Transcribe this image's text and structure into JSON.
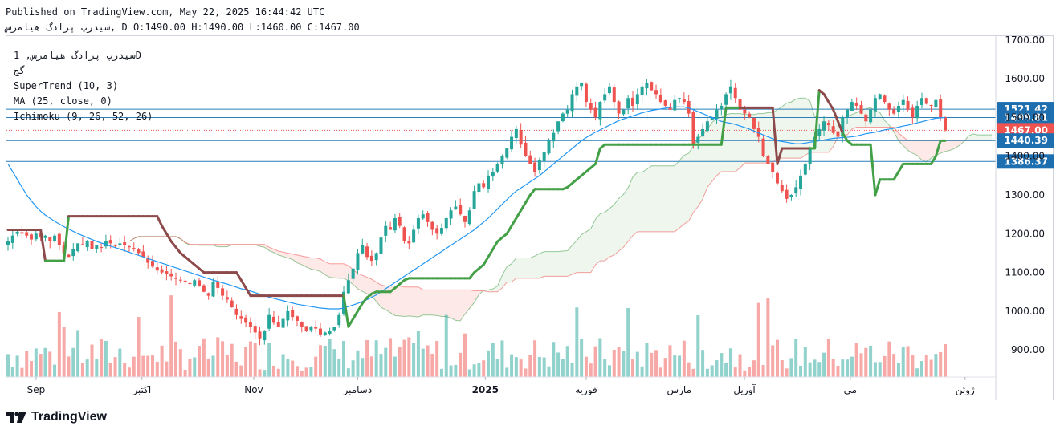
{
  "header": {
    "published": "Published on TradingView.com, May 22, 2025 16:44:42 UTC",
    "ohlc": "سیدرپ پرادگ هیامرس, D O:1490.00 H:1490.00 L:1460.00 C:1467.00"
  },
  "legend": {
    "symbol": "سیدرپ پرادگ هیامرس, 1D",
    "exchange": "گج",
    "supertrend": "SuperTrend (10, 3)",
    "ma": "MA (25, close, 0)",
    "ichimoku": "Ichimoku (9, 26, 52, 26)"
  },
  "branding": {
    "logo": "TradingView"
  },
  "colors": {
    "up": "#26a69a",
    "down": "#ef5350",
    "st_up": "#43a047",
    "st_down": "#8d4a4a",
    "ma": "#2196f3",
    "hline": "#2a7fb8"
  },
  "chart_data": {
    "type": "candlestick",
    "ylim": [
      830,
      1710
    ],
    "y_ticks": [
      "1700.00",
      "1600.00",
      "1500.00",
      "1400.00",
      "1300.00",
      "1200.00",
      "1100.00",
      "1000.00",
      "900.00"
    ],
    "y_tick_values": [
      1700,
      1600,
      1500,
      1400,
      1300,
      1200,
      1100,
      1000,
      900
    ],
    "price_labels": [
      {
        "value": 1521.42,
        "label": "1521.42",
        "kind": "hline"
      },
      {
        "value": 1499.81,
        "label": "1499.81",
        "kind": "hline"
      },
      {
        "value": 1467.0,
        "label": "1467.00",
        "kind": "last"
      },
      {
        "value": 1440.39,
        "label": "1440.39",
        "kind": "hline"
      },
      {
        "value": 1386.37,
        "label": "1386.37",
        "kind": "hline"
      }
    ],
    "x_labels": [
      {
        "label": "Sep",
        "pos": 0.03
      },
      {
        "label": "اکتبر",
        "pos": 0.137
      },
      {
        "label": "Nov",
        "pos": 0.25
      },
      {
        "label": "دسامبر",
        "pos": 0.355
      },
      {
        "label": "2025",
        "pos": 0.484
      },
      {
        "label": "فوریه",
        "pos": 0.586
      },
      {
        "label": "مارس",
        "pos": 0.68
      },
      {
        "label": "آوریل",
        "pos": 0.746
      },
      {
        "label": "می",
        "pos": 0.853
      },
      {
        "label": "ژوئن",
        "pos": 0.969
      }
    ],
    "series": [
      {
        "name": "Price (close)",
        "closes": [
          1180,
          1195,
          1205,
          1200,
          1195,
          1185,
          1200,
          1190,
          1195,
          1180,
          1195,
          1170,
          1150,
          1140,
          1160,
          1175,
          1170,
          1180,
          1160,
          1170,
          1165,
          1180,
          1175,
          1170,
          1175,
          1170,
          1165,
          1160,
          1150,
          1140,
          1125,
          1115,
          1105,
          1100,
          1095,
          1090,
          1085,
          1080,
          1075,
          1070,
          1080,
          1065,
          1050,
          1040,
          1075,
          1060,
          1040,
          1030,
          1010,
          990,
          980,
          970,
          960,
          945,
          930,
          950,
          990,
          970,
          960,
          980,
          1000,
          985,
          975,
          960,
          950,
          960,
          955,
          940,
          945,
          950,
          960,
          990,
          1050,
          1080,
          1110,
          1150,
          1170,
          1140,
          1130,
          1150,
          1190,
          1220,
          1210,
          1240,
          1220,
          1180,
          1175,
          1210,
          1240,
          1250,
          1230,
          1210,
          1200,
          1215,
          1240,
          1260,
          1270,
          1250,
          1230,
          1260,
          1310,
          1330,
          1320,
          1350,
          1360,
          1380,
          1400,
          1420,
          1450,
          1470,
          1430,
          1400,
          1380,
          1360,
          1390,
          1410,
          1440,
          1460,
          1490,
          1510,
          1520,
          1560,
          1580,
          1590,
          1540,
          1520,
          1500,
          1540,
          1560,
          1580,
          1540,
          1510,
          1520,
          1550,
          1530,
          1560,
          1580,
          1590,
          1570,
          1560,
          1540,
          1530,
          1520,
          1545,
          1550,
          1540,
          1510,
          1430,
          1450,
          1470,
          1490,
          1500,
          1520,
          1530,
          1560,
          1580,
          1550,
          1520,
          1510,
          1500,
          1470,
          1450,
          1400,
          1380,
          1360,
          1330,
          1310,
          1290,
          1300,
          1320,
          1350,
          1380,
          1420,
          1450,
          1470,
          1490,
          1480,
          1460,
          1450,
          1500,
          1520,
          1540,
          1530,
          1510,
          1490,
          1520,
          1550,
          1560,
          1540,
          1520,
          1510,
          1530,
          1545,
          1520,
          1500,
          1530,
          1550,
          1535,
          1530,
          1545,
          1500,
          1467
        ]
      },
      {
        "name": "MA",
        "closes": [
          1380,
          1360,
          1340,
          1320,
          1300,
          1285,
          1270,
          1258,
          1248,
          1240,
          1232,
          1225,
          1218,
          1212,
          1206,
          1200,
          1195,
          1190,
          1185,
          1180,
          1176,
          1172,
          1168,
          1164,
          1160,
          1156,
          1152,
          1148,
          1144,
          1140,
          1136,
          1132,
          1128,
          1124,
          1120,
          1116,
          1112,
          1108,
          1104,
          1100,
          1096,
          1092,
          1088,
          1084,
          1080,
          1077,
          1073,
          1070,
          1066,
          1062,
          1058,
          1055,
          1052,
          1048,
          1044,
          1040,
          1036,
          1033,
          1030,
          1027,
          1024,
          1021,
          1018,
          1016,
          1014,
          1012,
          1010,
          1008,
          1007,
          1006,
          1006,
          1006,
          1008,
          1012,
          1016,
          1020,
          1025,
          1030,
          1036,
          1042,
          1050,
          1058,
          1066,
          1074,
          1082,
          1090,
          1098,
          1106,
          1114,
          1122,
          1130,
          1138,
          1146,
          1154,
          1162,
          1170,
          1178,
          1186,
          1194,
          1202,
          1210,
          1220,
          1230,
          1240,
          1252,
          1264,
          1276,
          1288,
          1300,
          1310,
          1318,
          1326,
          1334,
          1342,
          1350,
          1360,
          1370,
          1380,
          1390,
          1400,
          1410,
          1420,
          1430,
          1440,
          1448,
          1455,
          1462,
          1468,
          1474,
          1480,
          1486,
          1492,
          1496,
          1500,
          1504,
          1508,
          1512,
          1515,
          1518,
          1520,
          1522,
          1524,
          1526,
          1527,
          1527,
          1527,
          1524,
          1520,
          1515,
          1510,
          1505,
          1500,
          1495,
          1490,
          1487,
          1485,
          1482,
          1478,
          1474,
          1470,
          1465,
          1460,
          1455,
          1450,
          1445,
          1440,
          1438,
          1436,
          1434,
          1432,
          1432,
          1434,
          1436,
          1438,
          1440,
          1442,
          1444,
          1446,
          1447,
          1448,
          1449,
          1450,
          1452,
          1455,
          1458,
          1460,
          1462,
          1465,
          1468,
          1470,
          1472,
          1475,
          1478,
          1480,
          1483,
          1486,
          1489,
          1492,
          1495,
          1498,
          1499,
          1500
        ]
      },
      {
        "name": "SuperTrend",
        "closes": [
          1210,
          1210,
          1210,
          1210,
          1210,
          1210,
          1210,
          1210,
          1130,
          1130,
          1130,
          1130,
          1130,
          1245,
          1245,
          1245,
          1245,
          1245,
          1245,
          1245,
          1245,
          1245,
          1245,
          1245,
          1245,
          1245,
          1245,
          1245,
          1245,
          1245,
          1245,
          1245,
          1245,
          1220,
          1200,
          1180,
          1165,
          1150,
          1140,
          1130,
          1120,
          1110,
          1100,
          1100,
          1100,
          1100,
          1100,
          1100,
          1100,
          1100,
          1080,
          1060,
          1040,
          1040,
          1040,
          1040,
          1040,
          1040,
          1040,
          1040,
          1040,
          1040,
          1040,
          1040,
          1040,
          1040,
          1040,
          1040,
          1040,
          1040,
          1040,
          1040,
          1040,
          960,
          980,
          1000,
          1020,
          1035,
          1045,
          1050,
          1050,
          1050,
          1050,
          1060,
          1070,
          1080,
          1085,
          1085,
          1085,
          1085,
          1085,
          1085,
          1085,
          1085,
          1085,
          1085,
          1085,
          1085,
          1085,
          1085,
          1100,
          1110,
          1120,
          1140,
          1160,
          1180,
          1190,
          1200,
          1220,
          1240,
          1260,
          1280,
          1300,
          1315,
          1315,
          1315,
          1315,
          1315,
          1315,
          1315,
          1320,
          1330,
          1340,
          1350,
          1360,
          1370,
          1380,
          1420,
          1430,
          1430,
          1430,
          1430,
          1430,
          1430,
          1430,
          1430,
          1430,
          1430,
          1430,
          1430,
          1430,
          1430,
          1430,
          1430,
          1430,
          1430,
          1430,
          1430,
          1430,
          1430,
          1430,
          1430,
          1430,
          1430,
          1525,
          1525,
          1525,
          1525,
          1525,
          1525,
          1525,
          1525,
          1525,
          1525,
          1525,
          1380,
          1420,
          1420,
          1420,
          1420,
          1420,
          1420,
          1420,
          1420,
          1570,
          1560,
          1540,
          1520,
          1490,
          1460,
          1440,
          1430,
          1430,
          1430,
          1430,
          1430,
          1300,
          1340,
          1340,
          1340,
          1340,
          1360,
          1380,
          1380,
          1380,
          1380,
          1380,
          1380,
          1380,
          1400,
          1440,
          1440,
          1440,
          1440,
          1440,
          1440,
          1440,
          1440,
          1440
        ]
      }
    ],
    "volume": {
      "max": 100
    }
  }
}
